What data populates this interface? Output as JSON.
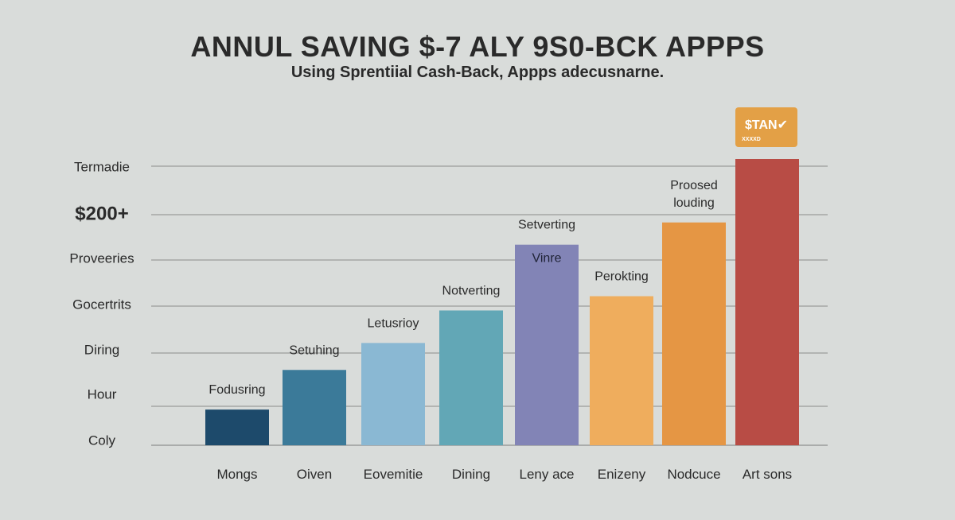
{
  "title": "ANNUL SAVING $-7 ALY 9S0-BCK APPPS",
  "subtitle": "Using Sprentiial Cash-Back, Appps adecusnarne.",
  "colors": {
    "background": "#d9dcda",
    "gridline": "#9a9c9b",
    "badge": "#e3a046"
  },
  "badge": {
    "main": "$TAN✔",
    "sub": "XXXXD"
  },
  "y_axis_labels": [
    "Termadie",
    "$200+",
    "Proveeries",
    "Gocertrits",
    "Diring",
    "Hour",
    "Coly"
  ],
  "chart_data": {
    "type": "bar",
    "categories": [
      "Mongs",
      "Oiven",
      "Eovemitie",
      "Dining",
      "Leny ace",
      "Enizeny",
      "Nodcuce",
      "Art sons"
    ],
    "values": [
      45,
      95,
      129,
      170,
      253,
      188,
      281,
      361
    ],
    "value_label_lines": [
      [
        "Fodusring"
      ],
      [
        "Setuhing"
      ],
      [
        "Letusrioy"
      ],
      [
        "Notverting"
      ],
      [
        "Setverting"
      ],
      [
        "Perokting"
      ],
      [
        "Proosed",
        "louding"
      ],
      []
    ],
    "inner_labels": [
      "",
      "",
      "",
      "",
      "Vinre",
      "",
      "",
      ""
    ],
    "colors": [
      "#1d4a6b",
      "#3b7a99",
      "#8ab8d3",
      "#62a7b6",
      "#8284b6",
      "#efad5d",
      "#e59644",
      "#b84c45"
    ],
    "ylim": [
      0,
      361
    ],
    "legend": "none",
    "grid": true
  }
}
